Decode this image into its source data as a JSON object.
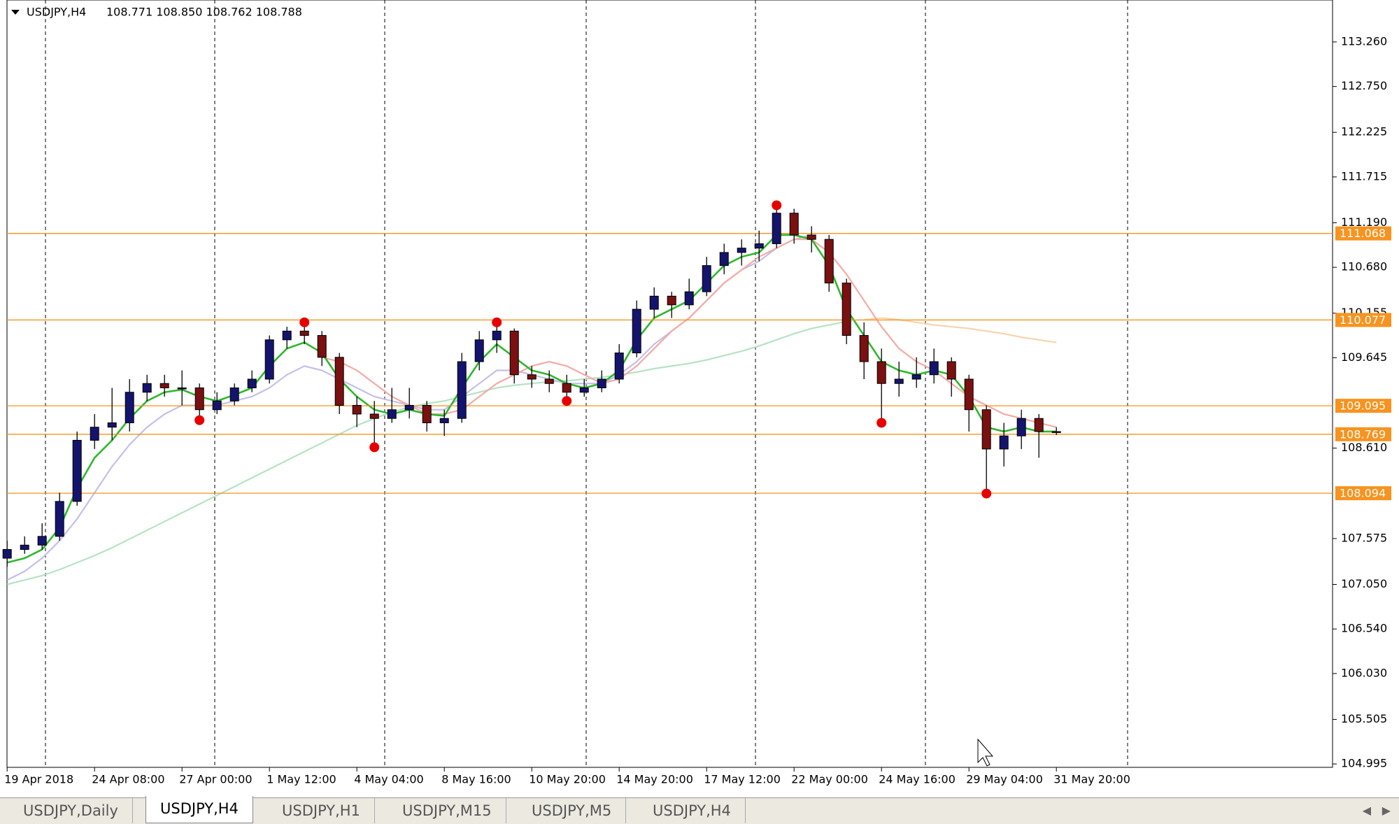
{
  "header": {
    "symbol": "USDJPY,H4",
    "ohlc": "108.771 108.850 108.762 108.788"
  },
  "chart_data": {
    "type": "candlestick",
    "categories": [
      "19 Apr 2018",
      null,
      null,
      null,
      null,
      "24 Apr 08:00",
      null,
      null,
      null,
      null,
      "27 Apr 00:00",
      null,
      null,
      null,
      null,
      "1 May 12:00",
      null,
      null,
      null,
      null,
      "4 May 04:00",
      null,
      null,
      null,
      null,
      "8 May 16:00",
      null,
      null,
      null,
      null,
      "10 May 20:00",
      null,
      null,
      null,
      null,
      "14 May 20:00",
      null,
      null,
      null,
      null,
      "17 May 12:00",
      null,
      null,
      null,
      null,
      "22 May 00:00",
      null,
      null,
      null,
      null,
      "24 May 16:00",
      null,
      null,
      null,
      null,
      "29 May 04:00",
      null,
      null,
      null,
      null,
      "31 May 20:00"
    ],
    "ohlc": [
      [
        107.35,
        107.55,
        107.25,
        107.45
      ],
      [
        107.45,
        107.6,
        107.4,
        107.5
      ],
      [
        107.5,
        107.75,
        107.45,
        107.6
      ],
      [
        107.6,
        108.1,
        107.55,
        108.0
      ],
      [
        108.0,
        108.8,
        107.95,
        108.7
      ],
      [
        108.7,
        109.0,
        108.6,
        108.85
      ],
      [
        108.85,
        109.3,
        108.7,
        108.9
      ],
      [
        108.9,
        109.4,
        108.8,
        109.25
      ],
      [
        109.25,
        109.45,
        109.15,
        109.35
      ],
      [
        109.35,
        109.45,
        109.2,
        109.3
      ],
      [
        109.3,
        109.5,
        109.1,
        109.3
      ],
      [
        109.3,
        109.35,
        108.93,
        109.05
      ],
      [
        109.05,
        109.25,
        109.0,
        109.15
      ],
      [
        109.15,
        109.35,
        109.1,
        109.3
      ],
      [
        109.3,
        109.5,
        109.25,
        109.4
      ],
      [
        109.4,
        109.9,
        109.35,
        109.85
      ],
      [
        109.85,
        110.0,
        109.75,
        109.95
      ],
      [
        109.95,
        110.05,
        109.8,
        109.9
      ],
      [
        109.9,
        109.95,
        109.55,
        109.65
      ],
      [
        109.65,
        109.7,
        109.0,
        109.1
      ],
      [
        109.1,
        109.2,
        108.85,
        109.0
      ],
      [
        109.0,
        109.15,
        108.62,
        108.95
      ],
      [
        108.95,
        109.3,
        108.9,
        109.05
      ],
      [
        109.05,
        109.3,
        108.95,
        109.1
      ],
      [
        109.1,
        109.15,
        108.8,
        108.9
      ],
      [
        108.9,
        109.05,
        108.75,
        108.95
      ],
      [
        108.95,
        109.7,
        108.9,
        109.6
      ],
      [
        109.6,
        109.95,
        109.5,
        109.85
      ],
      [
        109.85,
        110.05,
        109.7,
        109.95
      ],
      [
        109.95,
        109.98,
        109.35,
        109.45
      ],
      [
        109.45,
        109.55,
        109.3,
        109.4
      ],
      [
        109.4,
        109.5,
        109.25,
        109.35
      ],
      [
        109.35,
        109.45,
        109.15,
        109.25
      ],
      [
        109.25,
        109.4,
        109.2,
        109.3
      ],
      [
        109.3,
        109.5,
        109.25,
        109.4
      ],
      [
        109.4,
        109.8,
        109.35,
        109.7
      ],
      [
        109.7,
        110.3,
        109.65,
        110.2
      ],
      [
        110.2,
        110.45,
        110.1,
        110.35
      ],
      [
        110.35,
        110.4,
        110.1,
        110.25
      ],
      [
        110.25,
        110.55,
        110.2,
        110.4
      ],
      [
        110.4,
        110.8,
        110.35,
        110.7
      ],
      [
        110.7,
        110.95,
        110.6,
        110.85
      ],
      [
        110.85,
        111.0,
        110.7,
        110.9
      ],
      [
        110.9,
        111.1,
        110.75,
        110.95
      ],
      [
        110.95,
        111.39,
        110.9,
        111.3
      ],
      [
        111.3,
        111.35,
        110.95,
        111.05
      ],
      [
        111.05,
        111.15,
        110.85,
        111.0
      ],
      [
        111.0,
        111.05,
        110.4,
        110.5
      ],
      [
        110.5,
        110.55,
        109.8,
        109.9
      ],
      [
        109.9,
        110.05,
        109.4,
        109.6
      ],
      [
        109.6,
        109.75,
        108.9,
        109.35
      ],
      [
        109.35,
        109.6,
        109.2,
        109.4
      ],
      [
        109.4,
        109.65,
        109.3,
        109.45
      ],
      [
        109.45,
        109.75,
        109.35,
        109.6
      ],
      [
        109.6,
        109.65,
        109.2,
        109.4
      ],
      [
        109.4,
        109.45,
        108.8,
        109.05
      ],
      [
        109.05,
        109.1,
        108.09,
        108.6
      ],
      [
        108.6,
        108.9,
        108.4,
        108.75
      ],
      [
        108.75,
        109.05,
        108.6,
        108.95
      ],
      [
        108.95,
        109.0,
        108.5,
        108.8
      ],
      [
        108.8,
        108.85,
        108.76,
        108.788
      ]
    ],
    "bull_color": "#14146e",
    "bear_color": "#7a1010",
    "wick_color": "#000000",
    "ylim": [
      104.956,
      113.74
    ],
    "yticks": [
      {
        "value": 113.26,
        "label": "113.260"
      },
      {
        "value": 112.75,
        "label": "112.750"
      },
      {
        "value": 112.225,
        "label": "112.225"
      },
      {
        "value": 111.715,
        "label": "111.715"
      },
      {
        "value": 111.19,
        "label": "111.190"
      },
      {
        "value": 110.68,
        "label": "110.680"
      },
      {
        "value": 110.155,
        "label": "110.155"
      },
      {
        "value": 109.645,
        "label": "109.645"
      },
      {
        "value": 108.61,
        "label": "108.610"
      },
      {
        "value": 107.575,
        "label": "107.575"
      },
      {
        "value": 107.05,
        "label": "107.050"
      },
      {
        "value": 106.54,
        "label": "106.540"
      },
      {
        "value": 106.03,
        "label": "106.030"
      },
      {
        "value": 105.505,
        "label": "105.505"
      },
      {
        "value": 104.995,
        "label": "104.995"
      }
    ],
    "levels": {
      "color": "#f7931e",
      "values": [
        111.068,
        110.077,
        109.095,
        108.769,
        108.094
      ]
    },
    "series": [
      {
        "color": "#b5e3c3",
        "values": [
          107.05,
          107.1,
          107.15,
          107.22,
          107.3,
          107.38,
          107.47,
          107.57,
          107.67,
          107.77,
          107.87,
          107.97,
          108.07,
          108.17,
          108.27,
          108.37,
          108.47,
          108.57,
          108.67,
          108.77,
          108.87,
          108.95,
          109.02,
          109.08,
          109.12,
          109.15,
          109.2,
          109.25,
          109.3,
          109.33,
          109.35,
          109.37,
          109.38,
          109.4,
          109.42,
          109.45,
          109.48,
          109.52,
          109.55,
          109.58,
          109.62,
          109.67,
          109.72,
          109.78,
          109.85,
          109.92,
          109.98,
          110.02,
          110.06,
          null,
          null,
          null,
          null,
          null,
          null,
          null,
          null,
          null,
          null,
          null,
          null
        ]
      },
      {
        "color": "#f8d3ac",
        "values": [
          null,
          null,
          null,
          null,
          null,
          null,
          null,
          null,
          null,
          null,
          null,
          null,
          null,
          null,
          null,
          null,
          null,
          null,
          null,
          null,
          null,
          null,
          null,
          null,
          null,
          null,
          null,
          null,
          null,
          null,
          null,
          null,
          null,
          null,
          null,
          null,
          null,
          null,
          null,
          null,
          null,
          null,
          null,
          null,
          null,
          null,
          null,
          null,
          null,
          110.08,
          110.1,
          110.08,
          110.05,
          110.02,
          110.0,
          109.98,
          109.95,
          109.92,
          109.88,
          109.85,
          109.82
        ]
      },
      {
        "color": "#c4c0e8",
        "values": [
          107.1,
          107.2,
          107.35,
          107.55,
          107.8,
          108.1,
          108.4,
          108.65,
          108.85,
          109.0,
          109.1,
          109.1,
          109.1,
          109.15,
          109.2,
          109.3,
          109.45,
          109.55,
          109.5,
          109.4,
          109.3,
          109.2,
          109.15,
          109.1,
          109.05,
          109.05,
          109.2,
          109.35,
          109.5,
          109.5,
          109.45,
          109.4,
          109.35,
          109.35,
          109.35,
          109.45,
          109.6,
          109.8,
          109.95,
          110.1,
          110.3,
          110.5,
          110.65,
          110.75,
          110.9,
          111.0,
          111.05,
          null,
          null,
          null,
          null,
          null,
          null,
          null,
          null,
          null,
          null,
          null,
          null,
          null,
          null
        ]
      },
      {
        "color": "#f4aaa4",
        "values": [
          null,
          null,
          null,
          null,
          null,
          null,
          null,
          null,
          null,
          null,
          null,
          null,
          null,
          null,
          null,
          null,
          null,
          null,
          109.65,
          109.6,
          109.5,
          109.35,
          109.2,
          109.1,
          109.0,
          109.0,
          109.05,
          109.2,
          109.35,
          109.45,
          109.55,
          109.6,
          109.55,
          109.45,
          109.35,
          109.4,
          109.55,
          109.75,
          109.95,
          110.1,
          110.3,
          110.5,
          110.65,
          110.8,
          110.9,
          111.0,
          111.0,
          110.85,
          110.6,
          110.3,
          110.0,
          109.75,
          109.6,
          109.5,
          109.35,
          109.2,
          109.1,
          109.0,
          108.95,
          108.9,
          108.85
        ]
      },
      {
        "color": "#2eb82e",
        "values": [
          107.3,
          107.35,
          107.45,
          107.7,
          108.15,
          108.5,
          108.7,
          108.95,
          109.15,
          109.25,
          109.28,
          109.2,
          109.15,
          109.22,
          109.3,
          109.55,
          109.75,
          109.82,
          109.7,
          109.4,
          109.2,
          109.05,
          109.0,
          109.05,
          109.0,
          108.98,
          109.3,
          109.6,
          109.8,
          109.65,
          109.5,
          109.45,
          109.35,
          109.3,
          109.35,
          109.5,
          109.85,
          110.1,
          110.2,
          110.3,
          110.5,
          110.7,
          110.8,
          110.85,
          111.05,
          111.05,
          111.0,
          110.7,
          110.2,
          109.9,
          109.6,
          109.5,
          109.45,
          109.5,
          109.45,
          109.2,
          108.85,
          108.8,
          108.85,
          108.8,
          108.8
        ]
      }
    ],
    "markers": {
      "color": "#e60000",
      "values": [
        null,
        null,
        null,
        null,
        null,
        null,
        null,
        null,
        null,
        null,
        null,
        108.93,
        null,
        null,
        null,
        null,
        null,
        110.05,
        null,
        null,
        null,
        108.62,
        null,
        null,
        null,
        null,
        null,
        null,
        110.05,
        null,
        null,
        null,
        109.15,
        null,
        null,
        null,
        null,
        null,
        null,
        null,
        null,
        null,
        null,
        null,
        111.39,
        null,
        null,
        null,
        null,
        null,
        108.9,
        null,
        null,
        null,
        null,
        null,
        108.09,
        null,
        null,
        null,
        null
      ]
    }
  },
  "tabs": [
    "USDJPY,Daily",
    "USDJPY,H4",
    "USDJPY,H1",
    "USDJPY,M15",
    "USDJPY,M5",
    "USDJPY,H4"
  ],
  "active_tab": 1
}
